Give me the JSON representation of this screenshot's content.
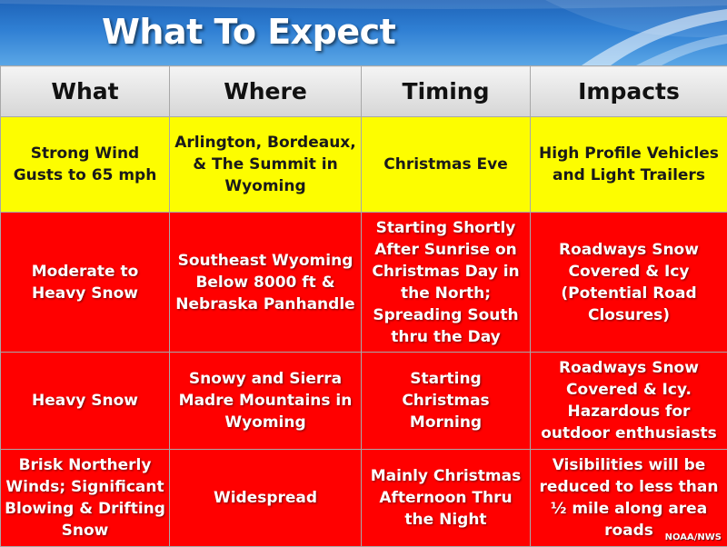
{
  "title": "What To Expect",
  "columns": [
    "What",
    "Where",
    "Timing",
    "Impacts"
  ],
  "rows": [
    {
      "level": "yellow",
      "what": "Strong Wind Gusts to 65 mph",
      "where": "Arlington, Bordeaux, & The Summit in Wyoming",
      "timing": "Christmas Eve",
      "impacts": "High Profile Vehicles and Light Trailers"
    },
    {
      "level": "red",
      "what": "Moderate to Heavy Snow",
      "where": "Southeast Wyoming Below 8000 ft & Nebraska Panhandle",
      "timing": "Starting Shortly After Sunrise on Christmas Day in the North; Spreading South thru the Day",
      "impacts": "Roadways Snow Covered & Icy (Potential Road Closures)"
    },
    {
      "level": "red",
      "what": "Heavy Snow",
      "where": "Snowy and Sierra Madre Mountains in Wyoming",
      "timing": "Starting Christmas Morning",
      "impacts": "Roadways Snow Covered & Icy. Hazardous for outdoor enthusiasts"
    },
    {
      "level": "red",
      "what": "Brisk Northerly Winds; Significant Blowing & Drifting Snow",
      "where": "Widespread",
      "timing": "Mainly Christmas Afternoon Thru the Night",
      "impacts": "Visibilities will be reduced to less than ½ mile along area roads"
    }
  ],
  "credit": "NOAA/NWS",
  "colors": {
    "banner": "#2f7fd3",
    "header": "#d6d6d6",
    "yellow": "#fdfd00",
    "red": "#ff0000"
  }
}
